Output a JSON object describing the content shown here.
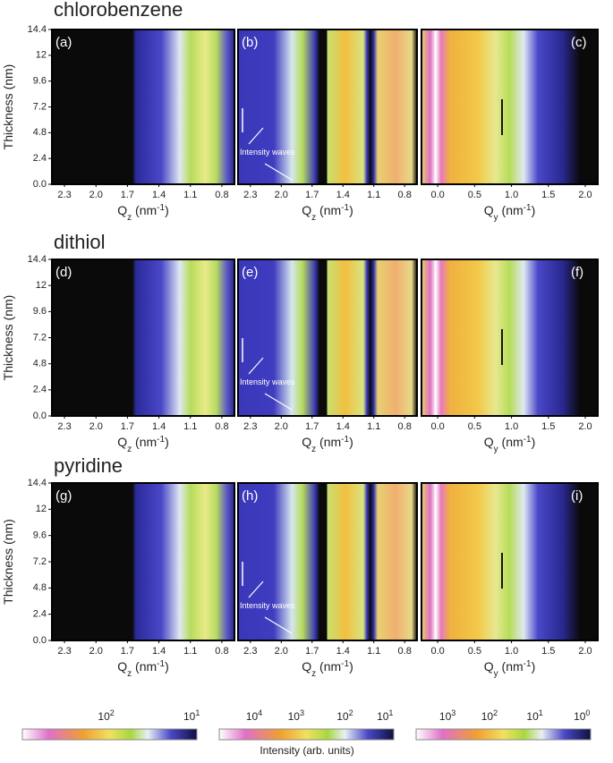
{
  "group_titles": [
    "chlorobenzene",
    "dithiol",
    "pyridine"
  ],
  "ylabel": "Thickness (nm)",
  "colorbar_label": "Intensity (arb. units)",
  "colorbars": [
    [
      {
        "base": "10",
        "exp": "2"
      },
      {
        "base": "10",
        "exp": "1"
      }
    ],
    [
      {
        "base": "10",
        "exp": "4"
      },
      {
        "base": "10",
        "exp": "3"
      },
      {
        "base": "10",
        "exp": "2"
      },
      {
        "base": "10",
        "exp": "1"
      }
    ],
    [
      {
        "base": "10",
        "exp": "3"
      },
      {
        "base": "10",
        "exp": "2"
      },
      {
        "base": "10",
        "exp": "1"
      },
      {
        "base": "10",
        "exp": "0"
      }
    ]
  ],
  "chart_data": [
    {
      "type": "heatmap",
      "label": "(a)",
      "xlabel": [
        "Q",
        "z",
        " (nm",
        "-1",
        ")"
      ],
      "xlim": [
        2.42,
        0.68
      ],
      "xticks": [
        2.3,
        {
          "value": 2,
          "label": "2.0"
        },
        1.7,
        1.4,
        1.1,
        0.8
      ],
      "ylim": [
        0,
        14.4
      ],
      "yticks": [
        {
          "value": 0,
          "label": "0.0"
        },
        2.4,
        4.8,
        7.2,
        9.6,
        12,
        14.4
      ]
    },
    {
      "type": "heatmap",
      "label": "(b)",
      "annotation": "Intensity waves",
      "xlabel": [
        "Q",
        "z",
        " (nm",
        "-1",
        ")"
      ],
      "xlim": [
        2.42,
        0.68
      ],
      "xticks": [
        2.3,
        {
          "value": 2,
          "label": "2.0"
        },
        1.7,
        1.4,
        1.1,
        0.8
      ],
      "ylim": [
        0,
        14.4
      ]
    },
    {
      "type": "heatmap",
      "label": "(c)",
      "xlabel": [
        "Q",
        "y",
        " (nm",
        "-1",
        ")"
      ],
      "xlim": [
        -0.22,
        2.17
      ],
      "xticks": [
        {
          "value": 0,
          "label": "0.0"
        },
        0.5,
        {
          "value": 1,
          "label": "1.0"
        },
        1.5,
        {
          "value": 2,
          "label": "2.0"
        }
      ],
      "ylim": [
        0,
        14.4
      ]
    },
    {
      "type": "heatmap",
      "label": "(d)",
      "xlabel": [
        "Q",
        "z",
        " (nm",
        "-1",
        ")"
      ],
      "xlim": [
        2.42,
        0.68
      ],
      "xticks": [
        2.3,
        {
          "value": 2,
          "label": "2.0"
        },
        1.7,
        1.4,
        1.1,
        0.8
      ],
      "ylim": [
        0,
        14.4
      ],
      "yticks": [
        {
          "value": 0,
          "label": "0.0"
        },
        2.4,
        4.8,
        7.2,
        9.6,
        12,
        14.4
      ]
    },
    {
      "type": "heatmap",
      "label": "(e)",
      "annotation": "Intensity waves",
      "xlabel": [
        "Q",
        "z",
        " (nm",
        "-1",
        ")"
      ],
      "xlim": [
        2.42,
        0.68
      ],
      "xticks": [
        2.3,
        {
          "value": 2,
          "label": "2.0"
        },
        1.7,
        1.4,
        1.1,
        0.8
      ],
      "ylim": [
        0,
        14.4
      ]
    },
    {
      "type": "heatmap",
      "label": "(f)",
      "xlabel": [
        "Q",
        "y",
        " (nm",
        "-1",
        ")"
      ],
      "xlim": [
        -0.22,
        2.17
      ],
      "xticks": [
        {
          "value": 0,
          "label": "0.0"
        },
        0.5,
        {
          "value": 1,
          "label": "1.0"
        },
        1.5,
        {
          "value": 2,
          "label": "2.0"
        }
      ],
      "ylim": [
        0,
        14.4
      ]
    },
    {
      "type": "heatmap",
      "label": "(g)",
      "xlabel": [
        "Q",
        "z",
        " (nm",
        "-1",
        ")"
      ],
      "xlim": [
        2.42,
        0.68
      ],
      "xticks": [
        2.3,
        {
          "value": 2,
          "label": "2.0"
        },
        1.7,
        1.4,
        1.1,
        0.8
      ],
      "ylim": [
        0,
        14.4
      ],
      "yticks": [
        {
          "value": 0,
          "label": "0.0"
        },
        2.4,
        4.8,
        7.2,
        9.6,
        12,
        14.4
      ]
    },
    {
      "type": "heatmap",
      "label": "(h)",
      "annotation": "Intensity waves",
      "xlabel": [
        "Q",
        "z",
        " (nm",
        "-1",
        ")"
      ],
      "xlim": [
        2.42,
        0.68
      ],
      "xticks": [
        2.3,
        {
          "value": 2,
          "label": "2.0"
        },
        1.7,
        1.4,
        1.1,
        0.8
      ],
      "ylim": [
        0,
        14.4
      ]
    },
    {
      "type": "heatmap",
      "label": "(i)",
      "xlabel": [
        "Q",
        "y",
        " (nm",
        "-1",
        ")"
      ],
      "xlim": [
        -0.22,
        2.17
      ],
      "xticks": [
        {
          "value": 0,
          "label": "0.0"
        },
        0.5,
        {
          "value": 1,
          "label": "1.0"
        },
        1.5,
        {
          "value": 2,
          "label": "2.0"
        }
      ],
      "ylim": [
        0,
        14.4
      ]
    }
  ]
}
